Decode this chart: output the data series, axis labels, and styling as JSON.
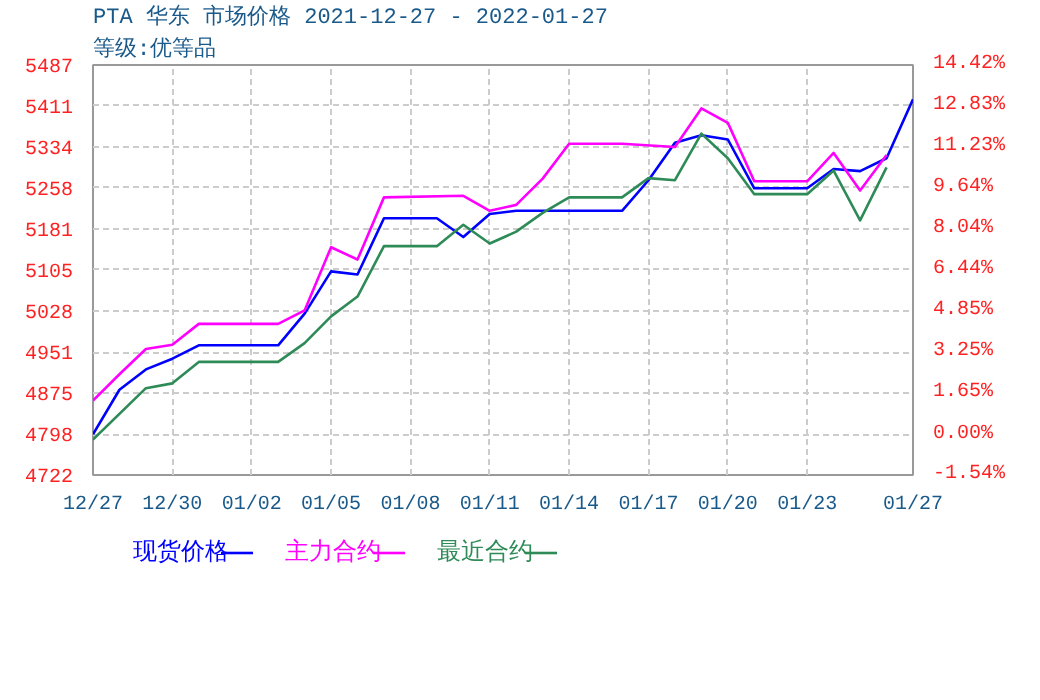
{
  "chart_data": {
    "type": "line",
    "title": "PTA 华东 市场价格 2021-12-27 - 2022-01-27",
    "subtitle": "等级:优等品",
    "xlim": [
      "2021-12-27",
      "2022-01-27"
    ],
    "xticks": [
      {
        "value": "2021-12-27",
        "label": "12/27"
      },
      {
        "value": "2021-12-30",
        "label": "12/30"
      },
      {
        "value": "2022-01-02",
        "label": "01/02"
      },
      {
        "value": "2022-01-05",
        "label": "01/05"
      },
      {
        "value": "2022-01-08",
        "label": "01/08"
      },
      {
        "value": "2022-01-11",
        "label": "01/11"
      },
      {
        "value": "2022-01-14",
        "label": "01/14"
      },
      {
        "value": "2022-01-17",
        "label": "01/17"
      },
      {
        "value": "2022-01-20",
        "label": "01/20"
      },
      {
        "value": "2022-01-23",
        "label": "01/23"
      },
      {
        "value": "2022-01-27",
        "label": "01/27"
      }
    ],
    "ylim": [
      4722,
      5487
    ],
    "yticks": [
      4722,
      4798,
      4875,
      4951,
      5028,
      5105,
      5181,
      5258,
      5334,
      5411,
      5487
    ],
    "y2lim": [
      -1.54,
      14.42
    ],
    "y2ticks": [
      {
        "value": -1.54,
        "label": "-1.54%"
      },
      {
        "value": 0,
        "label": "0.00%"
      },
      {
        "value": 1.65,
        "label": "1.65%"
      },
      {
        "value": 3.25,
        "label": "3.25%"
      },
      {
        "value": 4.85,
        "label": "4.85%"
      },
      {
        "value": 6.44,
        "label": "6.44%"
      },
      {
        "value": 8.04,
        "label": "8.04%"
      },
      {
        "value": 9.64,
        "label": "9.64%"
      },
      {
        "value": 11.23,
        "label": "11.23%"
      },
      {
        "value": 12.83,
        "label": "12.83%"
      },
      {
        "value": 14.42,
        "label": "14.42%"
      }
    ],
    "grid": true,
    "legend": "bottom",
    "marker": "none",
    "line_style": "solid",
    "series": [
      {
        "name": "现货价格",
        "color": "#0000ff",
        "x": [
          "2021-12-27",
          "2021-12-28",
          "2021-12-29",
          "2021-12-30",
          "2021-12-31",
          "2022-01-03",
          "2022-01-04",
          "2022-01-05",
          "2022-01-06",
          "2022-01-07",
          "2022-01-09",
          "2022-01-10",
          "2022-01-11",
          "2022-01-12",
          "2022-01-16",
          "2022-01-17",
          "2022-01-18",
          "2022-01-19",
          "2022-01-20",
          "2022-01-21",
          "2022-01-23",
          "2022-01-24",
          "2022-01-25",
          "2022-01-26",
          "2022-01-27"
        ],
        "values": [
          4798,
          4881,
          4919,
          4939,
          4964,
          4964,
          5023,
          5102,
          5096,
          5201,
          5201,
          5166,
          5209,
          5215,
          5215,
          5272,
          5342,
          5356,
          5348,
          5257,
          5257,
          5293,
          5289,
          5313,
          5423
        ]
      },
      {
        "name": "主力合约",
        "color": "#ff00ff",
        "x": [
          "2021-12-27",
          "2021-12-28",
          "2021-12-29",
          "2021-12-30",
          "2021-12-31",
          "2022-01-03",
          "2022-01-04",
          "2022-01-05",
          "2022-01-06",
          "2022-01-07",
          "2022-01-10",
          "2022-01-11",
          "2022-01-12",
          "2022-01-13",
          "2022-01-14",
          "2022-01-16",
          "2022-01-18",
          "2022-01-19",
          "2022-01-20",
          "2022-01-21",
          "2022-01-23",
          "2022-01-24",
          "2022-01-25",
          "2022-01-26"
        ],
        "values": [
          4861,
          4910,
          4957,
          4965,
          5004,
          5004,
          5029,
          5147,
          5124,
          5240,
          5243,
          5215,
          5226,
          5275,
          5340,
          5340,
          5334,
          5406,
          5379,
          5270,
          5270,
          5323,
          5253,
          5319
        ]
      },
      {
        "name": "最近合约",
        "color": "#2e8b57",
        "x": [
          "2021-12-27",
          "2021-12-29",
          "2021-12-30",
          "2021-12-31",
          "2022-01-03",
          "2022-01-04",
          "2022-01-05",
          "2022-01-06",
          "2022-01-07",
          "2022-01-09",
          "2022-01-10",
          "2022-01-11",
          "2022-01-12",
          "2022-01-13",
          "2022-01-14",
          "2022-01-16",
          "2022-01-17",
          "2022-01-18",
          "2022-01-19",
          "2022-01-20",
          "2022-01-21",
          "2022-01-23",
          "2022-01-24",
          "2022-01-25",
          "2022-01-26"
        ],
        "values": [
          4788,
          4884,
          4893,
          4933,
          4933,
          4968,
          5018,
          5055,
          5149,
          5149,
          5189,
          5154,
          5176,
          5211,
          5240,
          5240,
          5276,
          5272,
          5359,
          5313,
          5246,
          5246,
          5290,
          5197,
          5296
        ]
      }
    ]
  }
}
